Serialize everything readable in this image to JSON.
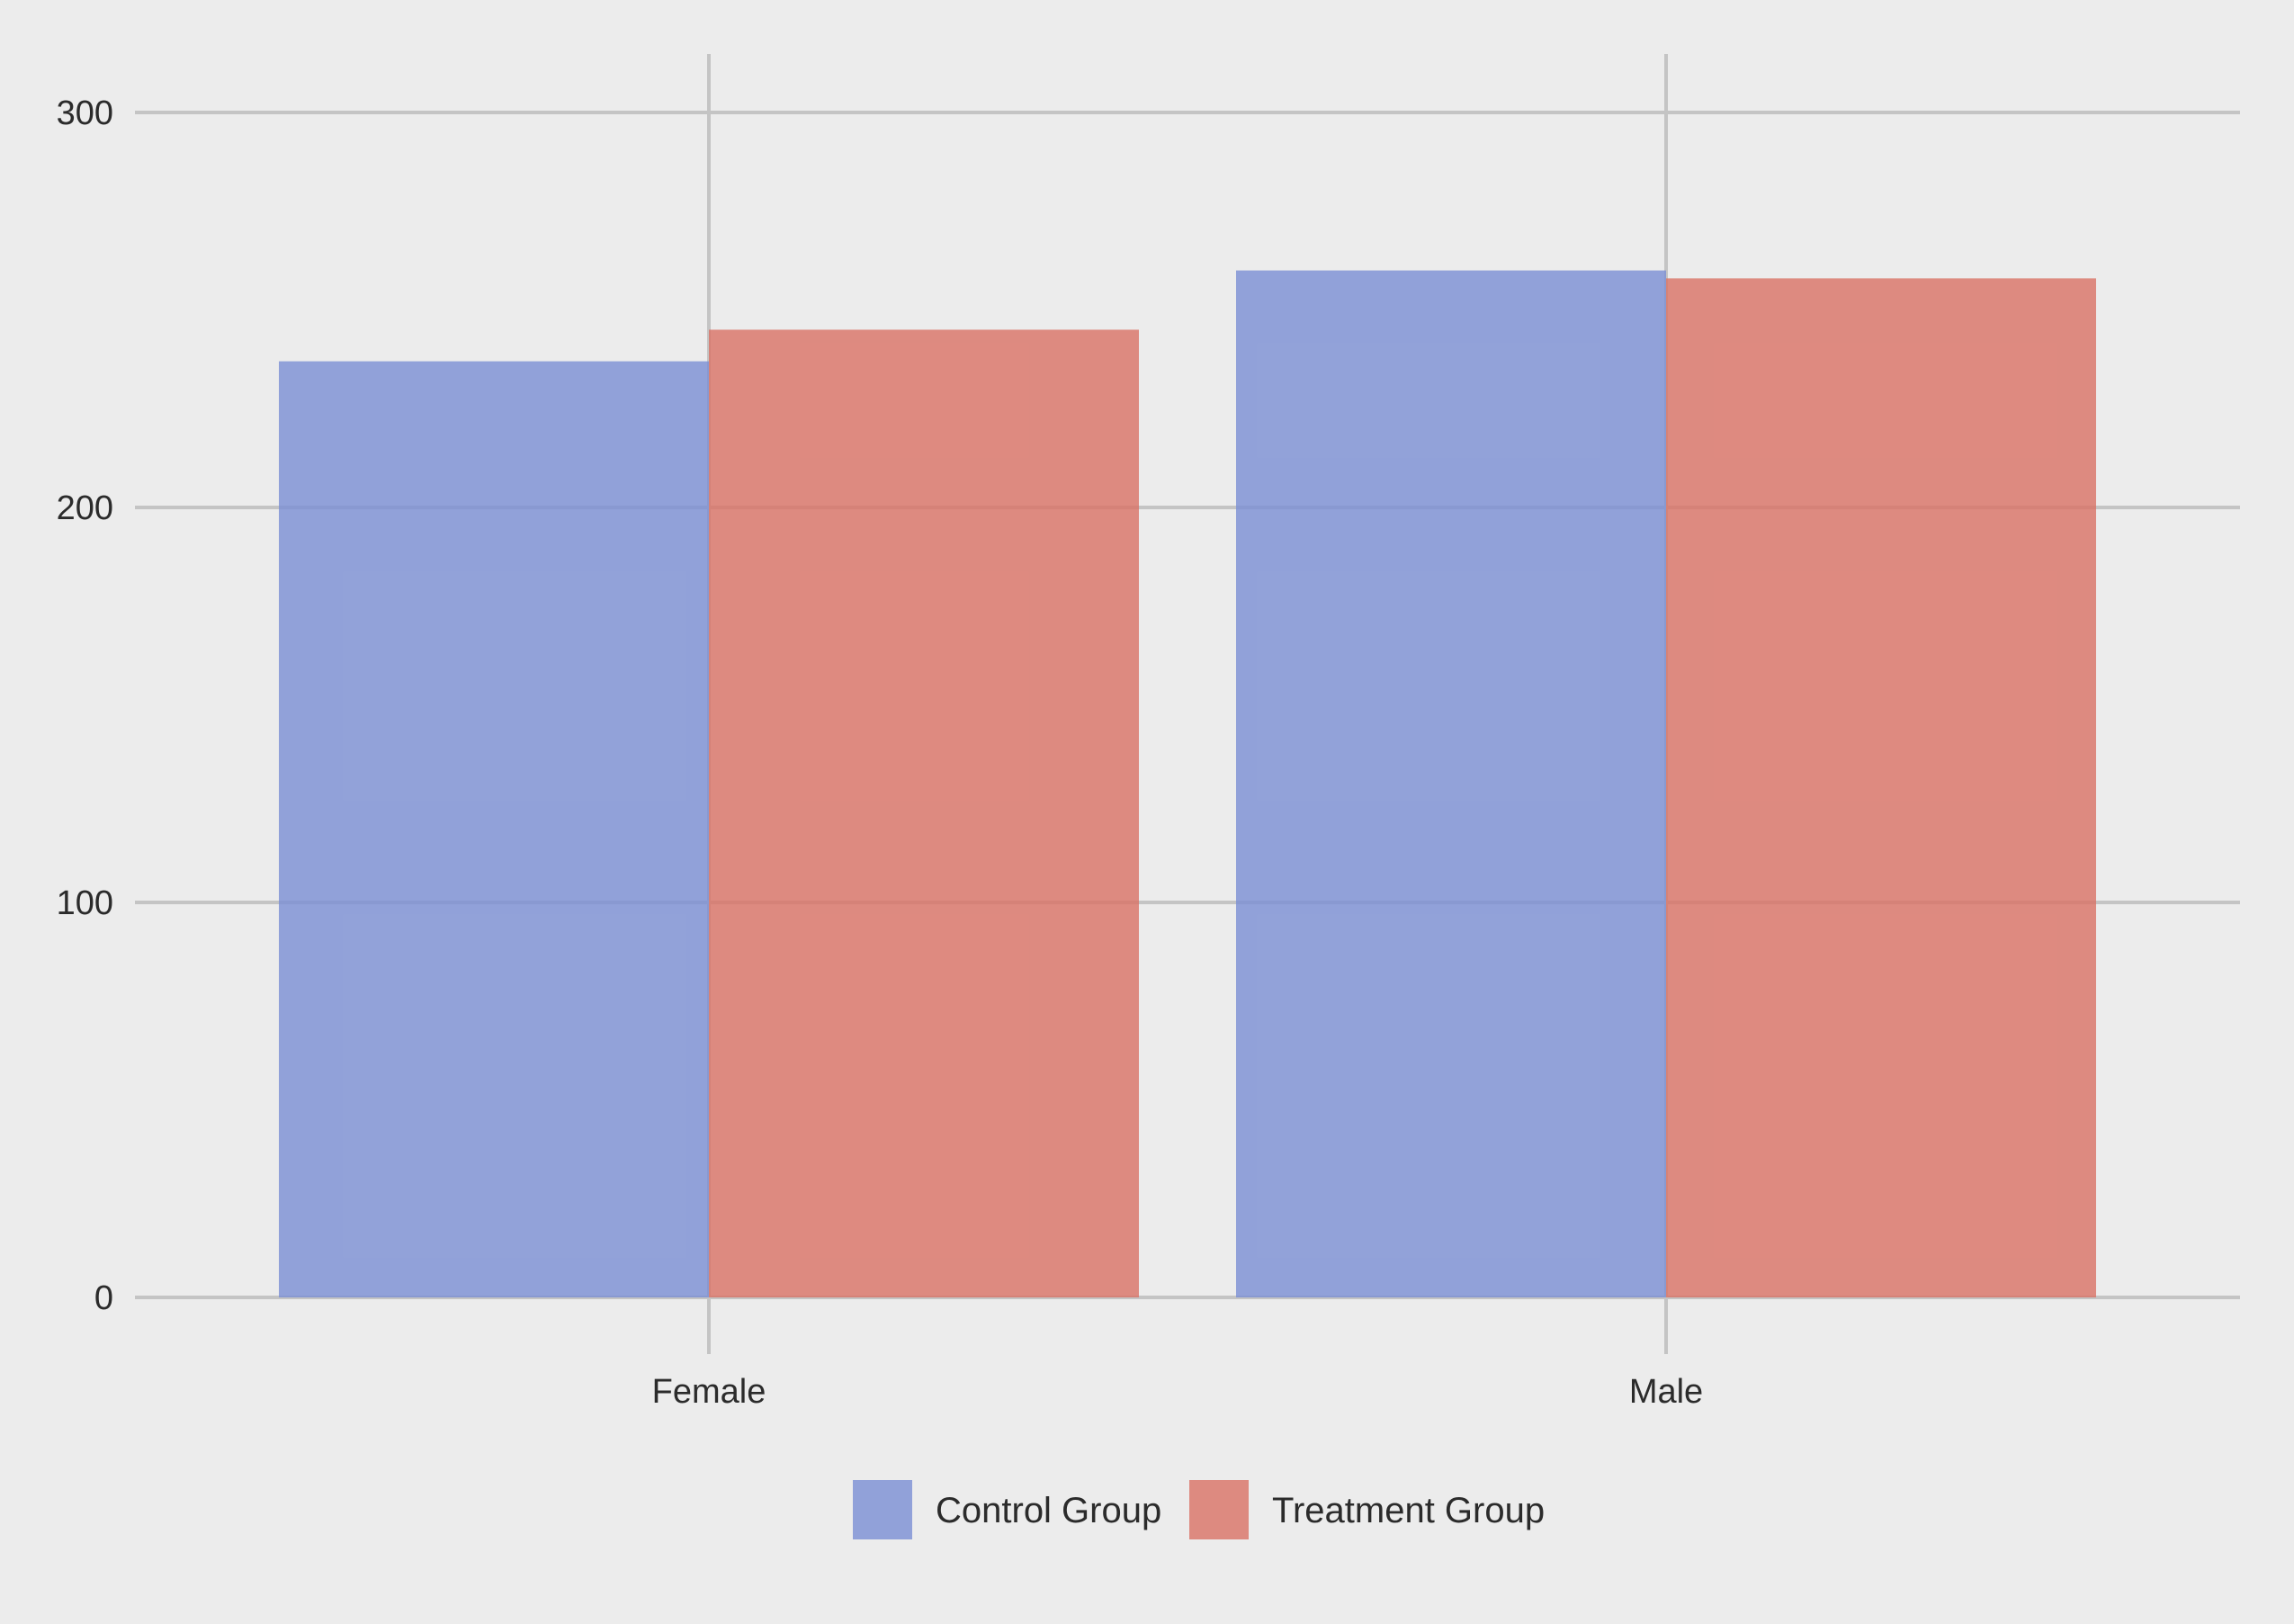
{
  "chart_data": {
    "type": "bar",
    "title": "",
    "xlabel": "",
    "ylabel": "",
    "categories": [
      "Female",
      "Male"
    ],
    "series": [
      {
        "name": "Control Group",
        "values": [
          237,
          260
        ],
        "color": "#7b8fd4"
      },
      {
        "name": "Treatment Group",
        "values": [
          245,
          258
        ],
        "color": "#da7265"
      }
    ],
    "ylim": [
      0,
      315
    ],
    "yticks": [
      0,
      100,
      200,
      300
    ],
    "grid": true,
    "legend_position": "bottom",
    "background_color": "#ececec",
    "grid_color": "#c4c4c4",
    "bar_opacity": 0.8
  }
}
